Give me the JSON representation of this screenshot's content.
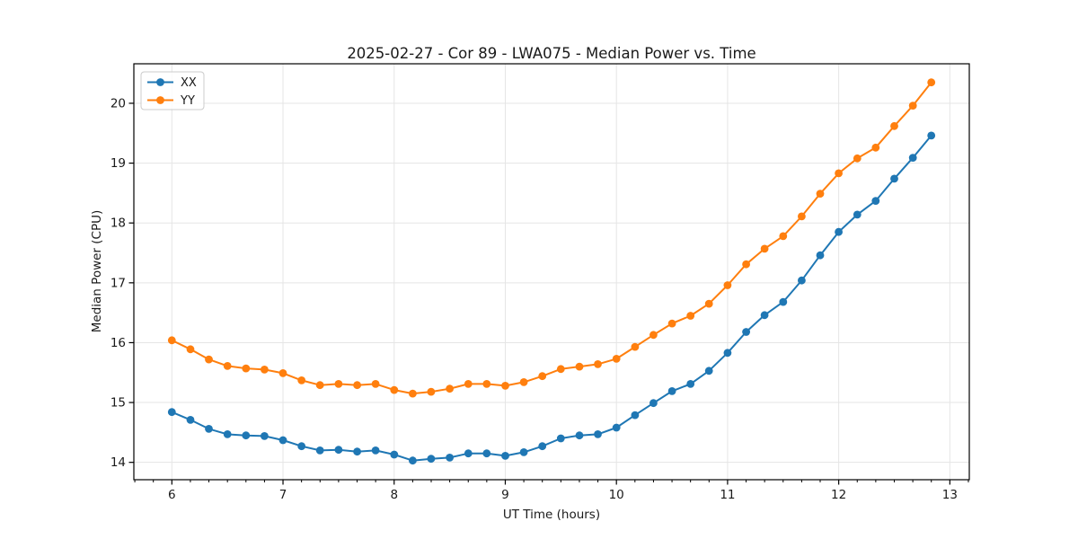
{
  "figure": {
    "background": "#ffffff",
    "spine_color": "#000000",
    "grid_color": "#e5e5e5",
    "text_color": "#1a1a1a"
  },
  "legend": {
    "entries": [
      {
        "label": "XX",
        "color": "#1f77b4"
      },
      {
        "label": "YY",
        "color": "#ff7f0e"
      }
    ],
    "position": "upper-left",
    "border_color": "#cccccc"
  },
  "chart_data": {
    "type": "line",
    "title": "2025-02-27 - Cor 89 - LWA075 - Median Power vs. Time",
    "xlabel": "UT Time (hours)",
    "ylabel": "Median Power (CPU)",
    "grid": true,
    "legend_position": "upper left",
    "marker": "o",
    "xlim": [
      5.658,
      13.175
    ],
    "ylim": [
      13.71,
      20.66
    ],
    "xticks": [
      6,
      7,
      8,
      9,
      10,
      11,
      12,
      13
    ],
    "yticks": [
      14,
      15,
      16,
      17,
      18,
      19,
      20
    ],
    "x_minor_step": 0.166667,
    "x": [
      6.0,
      6.167,
      6.333,
      6.5,
      6.667,
      6.833,
      7.0,
      7.167,
      7.333,
      7.5,
      7.667,
      7.833,
      8.0,
      8.167,
      8.333,
      8.5,
      8.667,
      8.833,
      9.0,
      9.167,
      9.333,
      9.5,
      9.667,
      9.833,
      10.0,
      10.167,
      10.333,
      10.5,
      10.667,
      10.833,
      11.0,
      11.167,
      11.333,
      11.5,
      11.667,
      11.833,
      12.0,
      12.167,
      12.333,
      12.5,
      12.667,
      12.833
    ],
    "series": [
      {
        "name": "XX",
        "color": "#1f77b4",
        "values": [
          14.84,
          14.71,
          14.56,
          14.47,
          14.45,
          14.44,
          14.37,
          14.27,
          14.2,
          14.21,
          14.18,
          14.2,
          14.13,
          14.03,
          14.06,
          14.08,
          14.15,
          14.15,
          14.11,
          14.17,
          14.27,
          14.4,
          14.45,
          14.47,
          14.58,
          14.79,
          14.99,
          15.19,
          15.31,
          15.53,
          15.83,
          16.18,
          16.46,
          16.68,
          17.04,
          17.46,
          17.85,
          18.14,
          18.37,
          18.74,
          19.09,
          19.46
        ]
      },
      {
        "name": "YY",
        "color": "#ff7f0e",
        "values": [
          16.04,
          15.89,
          15.72,
          15.61,
          15.57,
          15.55,
          15.49,
          15.37,
          15.29,
          15.31,
          15.29,
          15.31,
          15.21,
          15.15,
          15.18,
          15.23,
          15.31,
          15.31,
          15.28,
          15.34,
          15.44,
          15.56,
          15.6,
          15.64,
          15.73,
          15.93,
          16.13,
          16.32,
          16.45,
          16.65,
          16.96,
          17.31,
          17.57,
          17.78,
          18.11,
          18.49,
          18.83,
          19.08,
          19.26,
          19.62,
          19.96,
          20.35
        ]
      }
    ]
  }
}
